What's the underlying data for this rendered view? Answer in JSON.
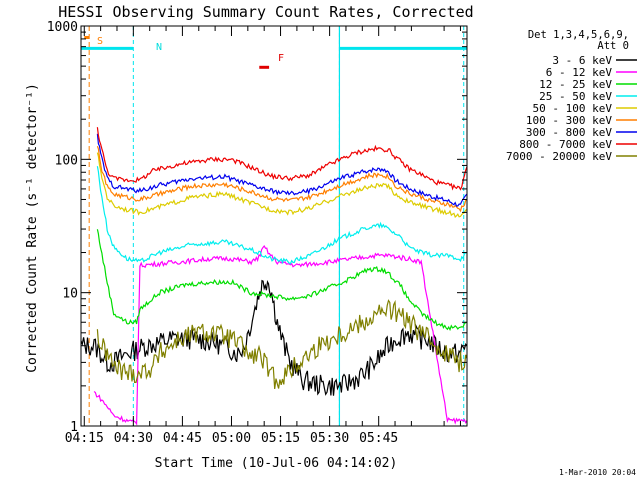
{
  "chart_data": {
    "type": "line",
    "title": "HESSI Observing Summary Count Rates, Corrected",
    "xlabel": "Start Time (10-Jul-06 04:14:02)",
    "ylabel": "Corrected Count Rate (s⁻¹ detector⁻¹)",
    "yscale": "log",
    "xlim_min": [
      0,
      118
    ],
    "ylim": [
      1,
      1000
    ],
    "x_ticks": [
      "04:15",
      "04:30",
      "04:45",
      "05:00",
      "05:15",
      "05:30",
      "05:45"
    ],
    "y_ticks": [
      "1",
      "10",
      "100",
      "1000"
    ],
    "legend_header": [
      "Det 1,3,4,5,6,9,",
      "Att 0"
    ],
    "legend_position": "right",
    "footer": "1-Mar-2010 20:04",
    "annotations": {
      "s": "S",
      "n": "N",
      "f": "F"
    },
    "colors": {
      "axis": "#000000",
      "orbit_flag": "#00e5ee",
      "saa_flag": "#ff7f00",
      "flare_flag": "#e00000"
    },
    "flags": {
      "saa_min": [
        1,
        2.5
      ],
      "night_min": [
        [
          0,
          16
        ],
        [
          79,
          118
        ]
      ],
      "flare_min": [
        54.5,
        57.5
      ]
    },
    "series": [
      {
        "name": "3 - 6 keV",
        "color": "#000000",
        "x": [
          0,
          4,
          6,
          8,
          10,
          14,
          20,
          28,
          36,
          44,
          48,
          50,
          52,
          54,
          55,
          56,
          57,
          58,
          59,
          60,
          62,
          64,
          68,
          74,
          80,
          86,
          90,
          94,
          96,
          100,
          104,
          106,
          108,
          112,
          116,
          118
        ],
        "y": [
          4,
          4,
          3.5,
          3,
          3,
          3.5,
          4,
          4.5,
          4.5,
          4,
          3.5,
          4,
          6,
          9,
          11,
          12,
          12.5,
          11,
          8,
          6,
          4,
          3,
          2.2,
          2,
          2,
          2.4,
          3,
          4,
          4.5,
          5,
          4.5,
          4.5,
          4,
          3.5,
          3.5,
          4
        ]
      },
      {
        "name": "6 - 12 keV",
        "color": "#ff00ff",
        "x": [
          4,
          6,
          8,
          10,
          14,
          17,
          18,
          30,
          40,
          46,
          52,
          54,
          56,
          58,
          60,
          66,
          76,
          90,
          94,
          100,
          104,
          112,
          116,
          118
        ],
        "y": [
          1.8,
          1.6,
          1.4,
          1.2,
          1.1,
          1.05,
          16,
          17,
          18,
          18,
          17,
          18,
          22,
          19,
          17,
          16,
          17,
          19,
          19,
          18,
          17,
          1.1,
          1.1,
          1.1
        ]
      },
      {
        "name": "12 - 25 keV",
        "color": "#00dd00",
        "x": [
          5,
          6,
          8,
          10,
          14,
          17,
          18,
          24,
          32,
          40,
          46,
          52,
          58,
          64,
          70,
          80,
          88,
          92,
          94,
          98,
          100,
          102,
          104,
          108,
          112,
          116,
          118
        ],
        "y": [
          30,
          22,
          12,
          7,
          6,
          6,
          7.5,
          10,
          11.5,
          12,
          12,
          10,
          9.5,
          9,
          9.5,
          12,
          15,
          15,
          14,
          11,
          9,
          8,
          7,
          6,
          5.5,
          5.5,
          6
        ]
      },
      {
        "name": "25 - 50 keV",
        "color": "#00eeee",
        "x": [
          5,
          6,
          8,
          10,
          14,
          18,
          24,
          34,
          44,
          52,
          58,
          64,
          70,
          80,
          88,
          92,
          94,
          98,
          100,
          104,
          108,
          112,
          116,
          118
        ],
        "y": [
          90,
          60,
          30,
          22,
          18,
          17,
          20,
          23,
          24,
          21,
          18,
          17,
          19,
          26,
          31,
          32,
          30,
          26,
          22,
          20,
          19,
          19,
          18,
          20
        ]
      },
      {
        "name": "50 - 100 keV",
        "color": "#ddcc00",
        "x": [
          5,
          6,
          8,
          10,
          14,
          18,
          24,
          34,
          44,
          52,
          58,
          64,
          70,
          80,
          88,
          92,
          94,
          96,
          100,
          104,
          108,
          112,
          116,
          118
        ],
        "y": [
          115,
          80,
          52,
          45,
          42,
          40,
          44,
          52,
          55,
          47,
          42,
          40,
          43,
          54,
          62,
          64,
          62,
          55,
          48,
          45,
          42,
          40,
          37,
          42
        ]
      },
      {
        "name": "100 - 300 keV",
        "color": "#ff7f00",
        "x": [
          5,
          6,
          8,
          10,
          14,
          18,
          24,
          34,
          44,
          52,
          58,
          64,
          70,
          80,
          88,
          92,
          94,
          96,
          100,
          104,
          108,
          112,
          116,
          118
        ],
        "y": [
          130,
          90,
          62,
          55,
          52,
          50,
          55,
          63,
          65,
          57,
          51,
          49,
          52,
          65,
          75,
          77,
          74,
          64,
          56,
          52,
          48,
          46,
          42,
          50
        ]
      },
      {
        "name": "300 - 800 keV",
        "color": "#0000ee",
        "x": [
          5,
          6,
          8,
          10,
          14,
          18,
          24,
          34,
          44,
          52,
          58,
          64,
          70,
          80,
          88,
          92,
          94,
          96,
          100,
          104,
          108,
          112,
          116,
          118
        ],
        "y": [
          150,
          110,
          72,
          63,
          60,
          58,
          64,
          72,
          74,
          64,
          58,
          55,
          58,
          73,
          83,
          85,
          81,
          70,
          61,
          56,
          52,
          49,
          45,
          55
        ]
      },
      {
        "name": "800 - 7000 keV",
        "color": "#ee0000",
        "x": [
          5,
          6,
          8,
          10,
          14,
          18,
          22,
          30,
          40,
          46,
          52,
          58,
          64,
          70,
          76,
          84,
          90,
          94,
          96,
          98,
          100,
          104,
          108,
          112,
          116,
          118
        ],
        "y": [
          170,
          130,
          82,
          72,
          70,
          70,
          82,
          92,
          100,
          100,
          87,
          75,
          72,
          76,
          92,
          112,
          120,
          118,
          105,
          95,
          86,
          77,
          68,
          64,
          60,
          88
        ]
      },
      {
        "name": "7000 - 20000 keV",
        "color": "#808000",
        "x": [
          5,
          6,
          8,
          10,
          14,
          18,
          22,
          24,
          30,
          36,
          40,
          46,
          50,
          52,
          54,
          56,
          58,
          60,
          64,
          70,
          74,
          80,
          86,
          90,
          94,
          96,
          100,
          104,
          108,
          112,
          116,
          118
        ],
        "y": [
          5,
          4,
          3.5,
          2.8,
          2.5,
          2.5,
          2.8,
          3.5,
          4.5,
          5,
          5,
          4.5,
          3.8,
          3.2,
          3.5,
          3,
          2.4,
          2.2,
          2.6,
          3.5,
          4.2,
          5,
          6,
          6.8,
          7.5,
          7.2,
          6,
          5,
          4.2,
          3.5,
          3,
          3.2
        ]
      }
    ]
  }
}
